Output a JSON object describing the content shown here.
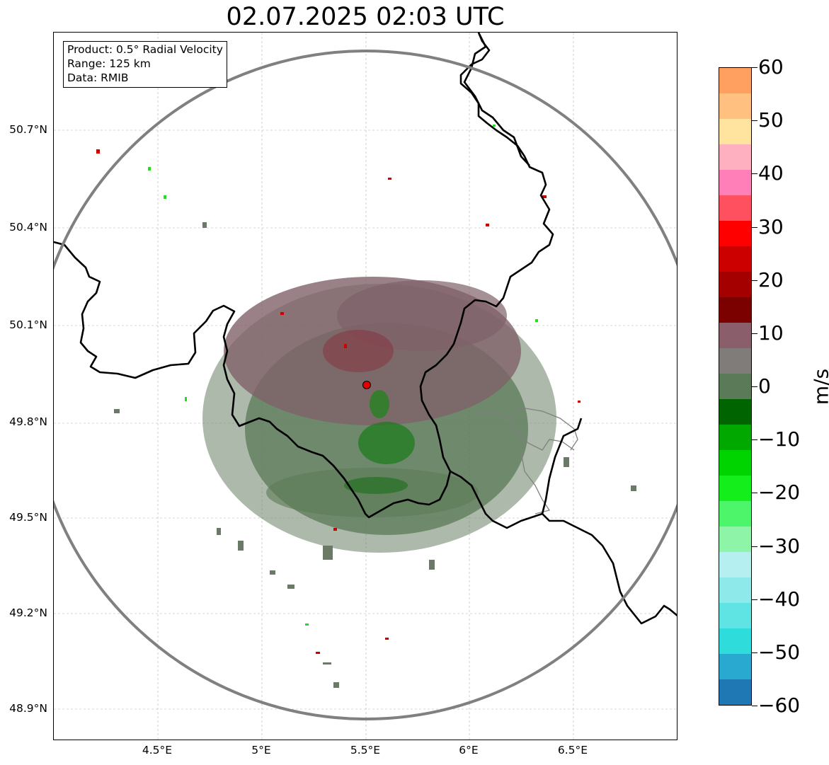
{
  "title": "02.07.2025 02:03 UTC",
  "info_box": {
    "line1": "Product: 0.5° Radial Velocity",
    "line2": "Range: 125 km",
    "line3": "Data: RMIB"
  },
  "y_ticks": [
    "50.7°N",
    "50.4°N",
    "50.1°N",
    "49.8°N",
    "49.5°N",
    "49.2°N",
    "48.9°N"
  ],
  "x_ticks": [
    "4.5°E",
    "5°E",
    "5.5°E",
    "6°E",
    "6.5°E"
  ],
  "colorbar": {
    "unit": "m/s",
    "ticks": [
      "60",
      "50",
      "40",
      "30",
      "20",
      "10",
      "0",
      "−10",
      "−20",
      "−30",
      "−40",
      "−50",
      "−60"
    ],
    "range": [
      -60,
      60
    ],
    "stops": [
      "#1f77b4",
      "#29a9cf",
      "#2fdcdc",
      "#5fe3e3",
      "#8eeaea",
      "#b5efef",
      "#8ef5a8",
      "#4cf56a",
      "#14ee1a",
      "#00d400",
      "#00a800",
      "#006400",
      "#5b7a57",
      "#7f7c7a",
      "#8a5f6b",
      "#7b0000",
      "#a40000",
      "#cd0000",
      "#ff0000",
      "#ff5060",
      "#ff80b8",
      "#ffb0c0",
      "#ffe4a0",
      "#ffc080",
      "#ffa060"
    ]
  },
  "colors": {
    "range_ring": "#808080",
    "border": "#000000",
    "province": "#808080",
    "radar_site": "#e00000",
    "velocity_inbound": "#5b7a57",
    "velocity_outbound": "#7f6169"
  },
  "radar_site": {
    "lon": 5.51,
    "lat": 49.91
  }
}
